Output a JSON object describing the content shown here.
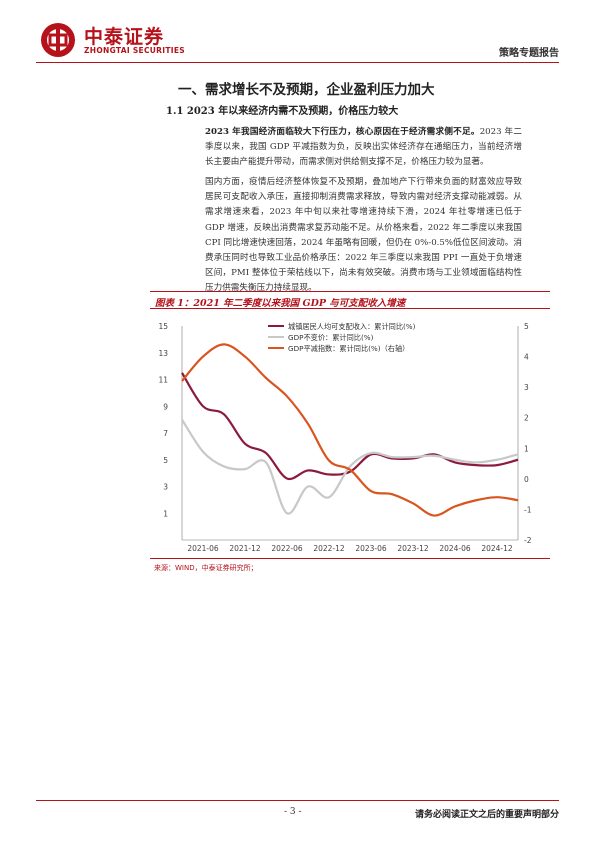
{
  "header": {
    "logo_cn": "中泰证券",
    "logo_en": "ZHONGTAI SECURITIES",
    "report_type": "策略专题报告",
    "accent_color": "#b5121b"
  },
  "section": {
    "h1": "一、需求增长不及预期，企业盈利压力加大",
    "h2": "1.1 2023 年以来经济内需不及预期，价格压力较大"
  },
  "paragraphs": {
    "p1_bold": "2023 年我国经济面临较大下行压力，核心原因在于经济需求侧不足。",
    "p1_rest": "2023 年二季度以来，我国 GDP 平减指数为负，反映出实体经济存在通缩压力，当前经济增长主要由产能提升带动，而需求侧对供给侧支撑不足，价格压力较为显著。",
    "p2": "国内方面，疫情后经济整体恢复不及预期，叠加地产下行带来负面的财富效应导致居民可支配收入承压，直接抑制消费需求释放，导致内需对经济支撑动能减弱。从需求增速来看，2023 年中旬以来社零增速持续下滑，2024 年社零增速已低于 GDP 增速，反映出消费需求复苏动能不足。从价格来看，2022 年二季度以来我国 CPI 同比增速快速回落，2024 年虽略有回暖，但仍在 0%-0.5%低位区间波动。消费承压同时也导致工业品价格承压：2022 年三季度以来我国 PPI 一直处于负增速区间，PMI 整体位于荣枯线以下，尚未有效突破。消费市场与工业领域面临结构性压力供需失衡压力持续显现。"
  },
  "figure": {
    "title": "图表 1：2021 年二季度以来我国 GDP 与可支配收入增速",
    "source": "来源：WIND，中泰证券研究所；"
  },
  "chart_data": {
    "type": "line",
    "x": [
      "2021-03",
      "2021-06",
      "2021-09",
      "2021-12",
      "2022-03",
      "2022-06",
      "2022-09",
      "2022-12",
      "2023-03",
      "2023-06",
      "2023-09",
      "2023-12",
      "2024-03",
      "2024-06",
      "2024-09",
      "2024-12",
      "2025-03"
    ],
    "x_tick_labels": [
      "2021-06",
      "2021-12",
      "2022-06",
      "2022-12",
      "2023-06",
      "2023-12",
      "2024-06",
      "2024-12"
    ],
    "y_left": {
      "min": -1,
      "max": 15,
      "ticks": [
        1,
        3,
        5,
        7,
        9,
        11,
        13,
        15
      ]
    },
    "y_right": {
      "min": -2,
      "max": 5,
      "ticks": [
        -2,
        -1,
        0,
        1,
        2,
        3,
        4,
        5
      ]
    },
    "series": [
      {
        "name": "城镇居民人均可支配收入：累计同比(%)",
        "axis": "left",
        "color": "#8b1a3c",
        "values": [
          11.5,
          9.0,
          8.4,
          6.2,
          5.5,
          3.6,
          4.2,
          3.9,
          4.1,
          5.4,
          5.1,
          5.1,
          5.4,
          4.8,
          4.6,
          4.6,
          5.0
        ]
      },
      {
        "name": "GDP不变价：累计同比(%)",
        "axis": "left",
        "color": "#c8c8c8",
        "values": [
          8.0,
          5.6,
          4.5,
          4.3,
          4.8,
          1.0,
          3.0,
          2.2,
          4.5,
          5.5,
          5.2,
          5.2,
          5.3,
          5.0,
          4.8,
          5.0,
          5.4
        ]
      },
      {
        "name": "GDP平减指数：累计同比(%)（右轴）",
        "axis": "right",
        "color": "#d9541e",
        "values": [
          3.2,
          4.0,
          4.4,
          4.0,
          3.3,
          2.7,
          1.8,
          0.6,
          0.3,
          -0.4,
          -0.5,
          -0.8,
          -1.2,
          -0.9,
          -0.7,
          -0.6,
          -0.7
        ]
      }
    ],
    "legend_position": "top-left",
    "grid": false
  },
  "footer": {
    "page": "- 3 -",
    "disclaimer": "请务必阅读正文之后的重要声明部分"
  }
}
